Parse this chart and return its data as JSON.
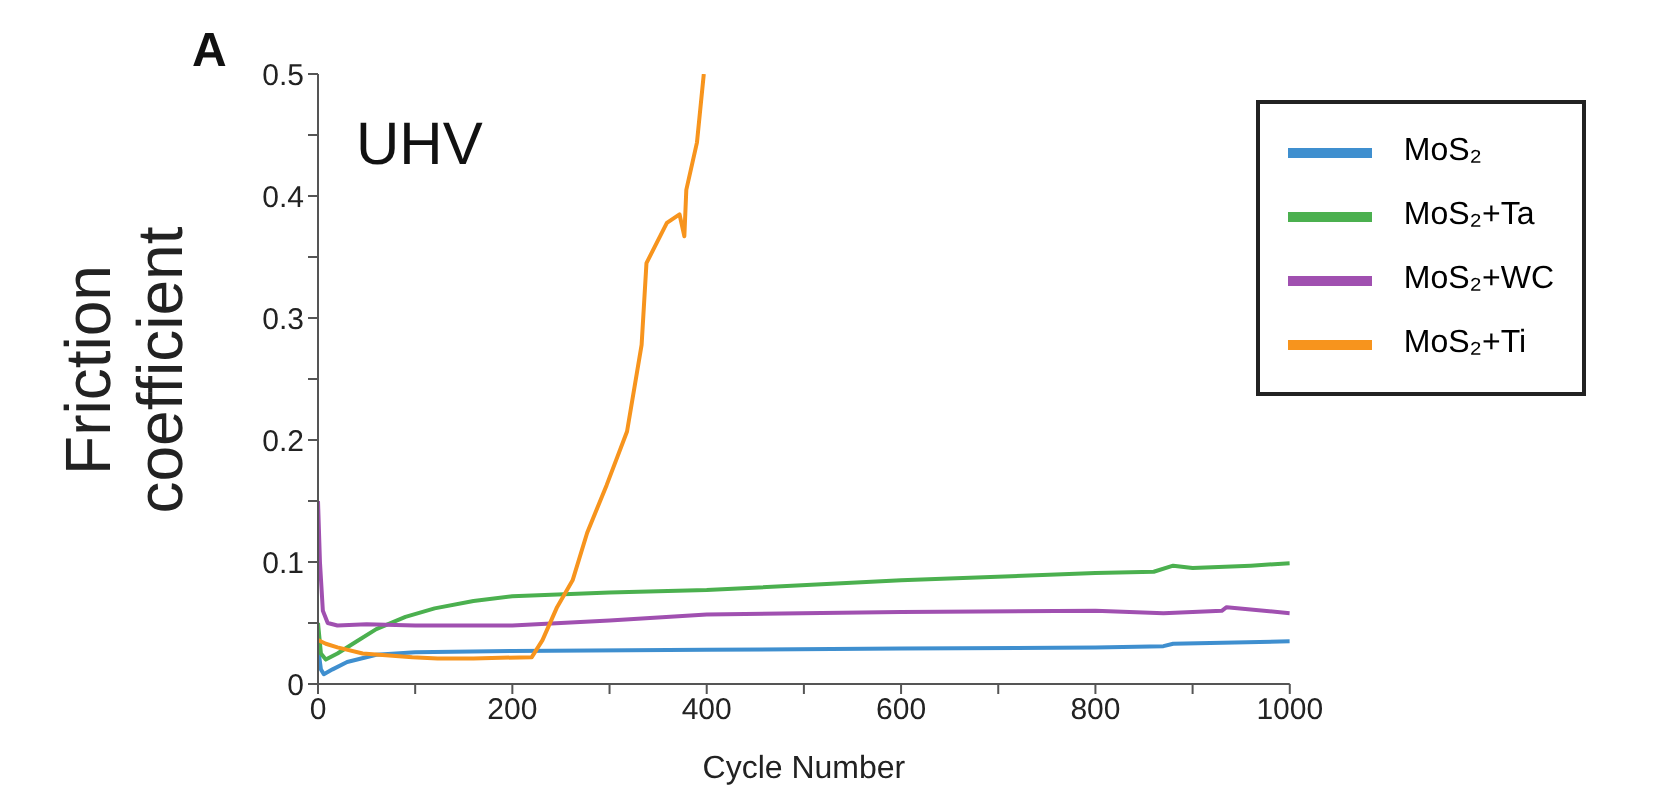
{
  "chart_data": {
    "type": "line",
    "xlabel": "Cycle Number",
    "ylabel": "Friction coefficient",
    "annotations": [
      "A",
      "UHV"
    ],
    "xlim": [
      0,
      1000
    ],
    "xticks": [
      0,
      {
        "value": 100,
        "label": null
      },
      200,
      {
        "value": 300,
        "label": null
      },
      400,
      {
        "value": 500,
        "label": null
      },
      600,
      {
        "value": 700,
        "label": null
      },
      800,
      {
        "value": 900,
        "label": null
      },
      1000
    ],
    "ylim": [
      0,
      0.5
    ],
    "yticks": [
      0,
      {
        "value": 0.05,
        "label": null
      },
      0.1,
      {
        "value": 0.15,
        "label": null
      },
      0.2,
      {
        "value": 0.25,
        "label": null
      },
      0.3,
      {
        "value": 0.35,
        "label": null
      },
      0.4,
      {
        "value": 0.45,
        "label": null
      },
      0.5
    ],
    "legend": "top right",
    "marker": "none",
    "line_style": "solid",
    "series": [
      {
        "name": "MoS₂",
        "color": "#3f8fcf",
        "x": [
          0,
          3,
          6,
          15,
          30,
          60,
          100,
          200,
          400,
          600,
          800,
          870,
          880,
          1000
        ],
        "values": [
          0.03,
          0.012,
          0.008,
          0.012,
          0.018,
          0.024,
          0.026,
          0.027,
          0.028,
          0.029,
          0.03,
          0.031,
          0.033,
          0.035
        ]
      },
      {
        "name": "MoS₂+Ta",
        "color": "#4bb04f",
        "x": [
          0,
          3,
          8,
          20,
          40,
          60,
          90,
          120,
          160,
          200,
          300,
          400,
          600,
          800,
          860,
          880,
          900,
          960,
          1000
        ],
        "values": [
          0.05,
          0.025,
          0.02,
          0.025,
          0.035,
          0.045,
          0.055,
          0.062,
          0.068,
          0.072,
          0.075,
          0.077,
          0.085,
          0.091,
          0.092,
          0.097,
          0.095,
          0.097,
          0.099
        ]
      },
      {
        "name": "MoS₂+WC",
        "color": "#a050b0",
        "x": [
          0,
          2,
          5,
          10,
          20,
          50,
          100,
          200,
          250,
          300,
          400,
          600,
          800,
          870,
          930,
          935,
          1000
        ],
        "values": [
          0.15,
          0.1,
          0.06,
          0.05,
          0.048,
          0.049,
          0.048,
          0.048,
          0.05,
          0.052,
          0.057,
          0.059,
          0.06,
          0.058,
          0.06,
          0.063,
          0.058
        ]
      },
      {
        "name": "MoS₂+Ti",
        "color": "#f7941d",
        "x": [
          0,
          8,
          20,
          46,
          97,
          123,
          160,
          220,
          231,
          246,
          262,
          277,
          297,
          318,
          333,
          338,
          359,
          372,
          377,
          379,
          390,
          397
        ],
        "values": [
          0.036,
          0.033,
          0.03,
          0.025,
          0.022,
          0.021,
          0.021,
          0.022,
          0.036,
          0.063,
          0.085,
          0.124,
          0.163,
          0.207,
          0.278,
          0.345,
          0.378,
          0.385,
          0.367,
          0.405,
          0.444,
          0.5
        ]
      }
    ]
  }
}
